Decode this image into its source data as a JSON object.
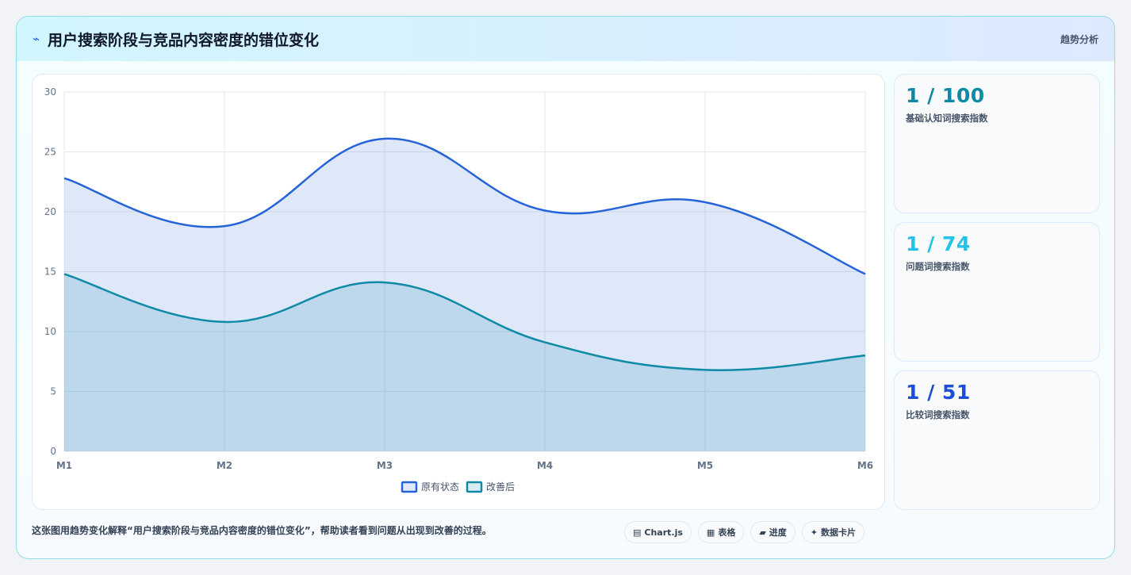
{
  "header": {
    "title": "用户搜索阶段与竞品内容密度的错位变化",
    "icon": "trend-line-icon",
    "tag": "趋势分析"
  },
  "stats": [
    {
      "value": "1 / 100",
      "label": "基础认知词搜索指数",
      "color": "#0e8aa7"
    },
    {
      "value": "1 / 74",
      "label": "问题词搜索指数",
      "color": "#22c3e6"
    },
    {
      "value": "1 / 51",
      "label": "比较词搜索指数",
      "color": "#1d4ed8"
    }
  ],
  "footer": {
    "caption": "这张图用趋势变化解释“用户搜索阶段与竞品内容密度的错位变化”，帮助读者看到问题从出现到改善的过程。",
    "pills": [
      {
        "icon": "▤",
        "label": "Chart.js"
      },
      {
        "icon": "▦",
        "label": "表格"
      },
      {
        "icon": "▰",
        "label": "进度"
      },
      {
        "icon": "✦",
        "label": "数据卡片"
      }
    ]
  },
  "chart_data": {
    "type": "area",
    "categories": [
      "M1",
      "M2",
      "M3",
      "M4",
      "M5",
      "M6"
    ],
    "series": [
      {
        "name": "原有状态",
        "values": [
          22.8,
          18.8,
          26.1,
          20.1,
          20.8,
          14.8
        ],
        "color": "#2563d9",
        "fill": "rgba(37,99,217,0.15)"
      },
      {
        "name": "改善后",
        "values": [
          14.8,
          10.8,
          14.1,
          9.1,
          6.8,
          8.0
        ],
        "color": "#0e8aa7",
        "fill": "rgba(14,138,167,0.16)"
      }
    ],
    "ylim": [
      0,
      30
    ],
    "yticks": [
      0,
      5,
      10,
      15,
      20,
      25,
      30
    ],
    "grid": true,
    "legend": "bottom"
  }
}
